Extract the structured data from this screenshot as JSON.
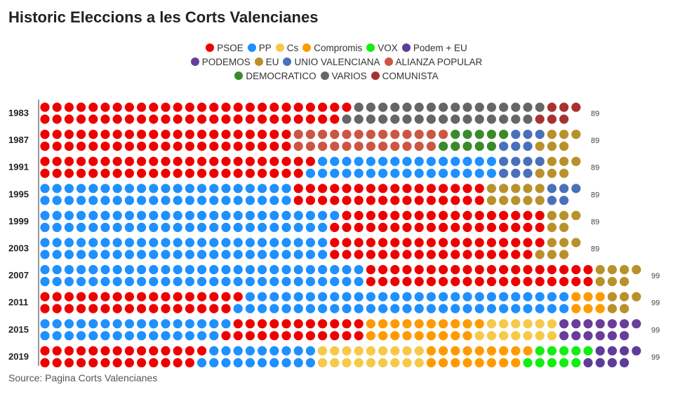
{
  "title": "Historic Eleccions a les Corts Valencianes",
  "source": "Source: Pagina Corts Valencianes",
  "colors": {
    "PSOE": "#ee0000",
    "PP": "#1e90ff",
    "Cs": "#f7c948",
    "Compromis": "#ff9a00",
    "VOX": "#11ee11",
    "Podem + EU": "#5e3c99",
    "PODEMOS": "#6a3d9a",
    "EU": "#b8912b",
    "UNIO VALENCIANA": "#4a6fbb",
    "ALIANZA POPULAR": "#cc5544",
    "DEMOCRATICO": "#3a8a2a",
    "VARIOS": "#666666",
    "COMUNISTA": "#a83232"
  },
  "legend_rows": [
    [
      "PSOE",
      "PP",
      "Cs",
      "Compromis",
      "VOX",
      "Podem + EU"
    ],
    [
      "PODEMOS",
      "EU",
      "UNIO VALENCIANA",
      "ALIANZA POPULAR"
    ],
    [
      "DEMOCRATICO",
      "VARIOS",
      "COMUNISTA"
    ]
  ],
  "chart_data": {
    "type": "waffle",
    "title": "Historic Eleccions a les Corts Valencianes",
    "categories": [
      "1983",
      "1987",
      "1991",
      "1995",
      "1999",
      "2003",
      "2007",
      "2011",
      "2015",
      "2019"
    ],
    "totals": [
      89,
      89,
      89,
      89,
      89,
      89,
      99,
      99,
      99,
      99
    ],
    "dot_rows_per_year": 2,
    "elections": [
      {
        "year": "1983",
        "total": 89,
        "seats": [
          {
            "party": "PSOE",
            "seats": 51
          },
          {
            "party": "VARIOS",
            "seats": 32
          },
          {
            "party": "COMUNISTA",
            "seats": 6
          }
        ]
      },
      {
        "year": "1987",
        "total": 89,
        "seats": [
          {
            "party": "PSOE",
            "seats": 42
          },
          {
            "party": "ALIANZA POPULAR",
            "seats": 25
          },
          {
            "party": "DEMOCRATICO",
            "seats": 10
          },
          {
            "party": "UNIO VALENCIANA",
            "seats": 6
          },
          {
            "party": "EU",
            "seats": 6
          }
        ]
      },
      {
        "year": "1991",
        "total": 89,
        "seats": [
          {
            "party": "PSOE",
            "seats": 45
          },
          {
            "party": "PP",
            "seats": 31
          },
          {
            "party": "UNIO VALENCIANA",
            "seats": 7
          },
          {
            "party": "EU",
            "seats": 6
          }
        ]
      },
      {
        "year": "1995",
        "total": 89,
        "seats": [
          {
            "party": "PP",
            "seats": 42
          },
          {
            "party": "PSOE",
            "seats": 32
          },
          {
            "party": "EU",
            "seats": 10
          },
          {
            "party": "UNIO VALENCIANA",
            "seats": 5
          }
        ]
      },
      {
        "year": "1999",
        "total": 89,
        "seats": [
          {
            "party": "PP",
            "seats": 49
          },
          {
            "party": "PSOE",
            "seats": 35
          },
          {
            "party": "EU",
            "seats": 5
          }
        ]
      },
      {
        "year": "2003",
        "total": 89,
        "seats": [
          {
            "party": "PP",
            "seats": 48
          },
          {
            "party": "PSOE",
            "seats": 35
          },
          {
            "party": "EU",
            "seats": 6
          }
        ]
      },
      {
        "year": "2007",
        "total": 99,
        "seats": [
          {
            "party": "PP",
            "seats": 54
          },
          {
            "party": "PSOE",
            "seats": 38
          },
          {
            "party": "EU",
            "seats": 7
          }
        ]
      },
      {
        "year": "2011",
        "total": 99,
        "seats": [
          {
            "party": "PSOE",
            "seats": 33
          },
          {
            "party": "PP",
            "seats": 55
          },
          {
            "party": "Compromis",
            "seats": 6
          },
          {
            "party": "EU",
            "seats": 5
          }
        ]
      },
      {
        "year": "2015",
        "total": 99,
        "seats": [
          {
            "party": "PP",
            "seats": 31
          },
          {
            "party": "PSOE",
            "seats": 23
          },
          {
            "party": "Compromis",
            "seats": 19
          },
          {
            "party": "Cs",
            "seats": 13
          },
          {
            "party": "PODEMOS",
            "seats": 13
          }
        ]
      },
      {
        "year": "2019",
        "total": 99,
        "seats": [
          {
            "party": "PSOE",
            "seats": 27
          },
          {
            "party": "PP",
            "seats": 19
          },
          {
            "party": "Cs",
            "seats": 18
          },
          {
            "party": "Compromis",
            "seats": 17
          },
          {
            "party": "VOX",
            "seats": 10
          },
          {
            "party": "Podem + EU",
            "seats": 8
          }
        ]
      }
    ]
  }
}
